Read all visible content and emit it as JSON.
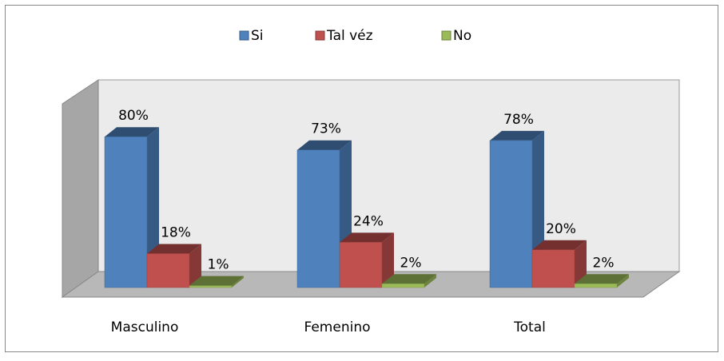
{
  "chart_data": {
    "type": "bar3d",
    "categories": [
      "Masculino",
      "Femenino",
      "Total"
    ],
    "series": [
      {
        "name": "Si",
        "color": "#4f81bd",
        "values": [
          80,
          73,
          78
        ],
        "value_labels": [
          "80%",
          "73%",
          "78%"
        ]
      },
      {
        "name": "Tal véz",
        "color": "#c0504d",
        "values": [
          18,
          24,
          20
        ],
        "value_labels": [
          "18%",
          "24%",
          "20%"
        ]
      },
      {
        "name": "No",
        "color": "#9bbb59",
        "values": [
          1,
          2,
          2
        ],
        "value_labels": [
          "1%",
          "2%",
          "2%"
        ]
      }
    ],
    "legend": "top"
  }
}
